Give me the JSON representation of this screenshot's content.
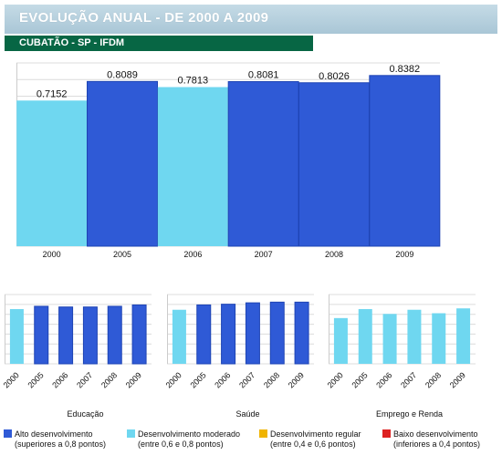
{
  "header": {
    "title": "EVOLUÇÃO ANUAL - DE 2000 A 2009"
  },
  "subheader": {
    "title": "CUBATÃO - SP - IFDM"
  },
  "colors": {
    "high": "#2f5ad6",
    "moderate": "#6fd7f0",
    "regular": "#f0b400",
    "low": "#dd2222"
  },
  "chart_data": [
    {
      "type": "bar",
      "panel": "main",
      "categories": [
        "2000",
        "2005",
        "2006",
        "2007",
        "2008",
        "2009"
      ],
      "values": [
        0.7152,
        0.8089,
        0.7813,
        0.8081,
        0.8026,
        0.8382
      ],
      "value_labels": [
        "0.7152",
        "0.8089",
        "0.7813",
        "0.8081",
        "0.8026",
        "0.8382"
      ],
      "classes": [
        "moderate",
        "high",
        "moderate",
        "high",
        "high",
        "high"
      ],
      "ylim": [
        0,
        0.9
      ],
      "grid": true,
      "title": "",
      "xlabel": "",
      "ylabel": ""
    },
    {
      "type": "bar",
      "panel": "educacao",
      "title": "Educação",
      "categories": [
        "2000",
        "2005",
        "2006",
        "2007",
        "2008",
        "2009"
      ],
      "values": [
        0.79,
        0.83,
        0.82,
        0.82,
        0.83,
        0.85
      ],
      "classes": [
        "moderate",
        "high",
        "high",
        "high",
        "high",
        "high"
      ],
      "ylim": [
        0,
        1
      ],
      "grid": true
    },
    {
      "type": "bar",
      "panel": "saude",
      "title": "Saúde",
      "categories": [
        "2000",
        "2005",
        "2006",
        "2007",
        "2008",
        "2009"
      ],
      "values": [
        0.78,
        0.85,
        0.86,
        0.88,
        0.89,
        0.89
      ],
      "classes": [
        "moderate",
        "high",
        "high",
        "high",
        "high",
        "high"
      ],
      "ylim": [
        0,
        1
      ],
      "grid": true
    },
    {
      "type": "bar",
      "panel": "emprego",
      "title": "Emprego e Renda",
      "categories": [
        "2000",
        "2005",
        "2006",
        "2007",
        "2008",
        "2009"
      ],
      "values": [
        0.66,
        0.79,
        0.72,
        0.78,
        0.73,
        0.8
      ],
      "classes": [
        "moderate",
        "moderate",
        "moderate",
        "moderate",
        "moderate",
        "moderate"
      ],
      "ylim": [
        0,
        1
      ],
      "grid": true
    }
  ],
  "legend": [
    {
      "key": "high",
      "line1": "Alto desenvolvimento",
      "line2": "(superiores a 0,8 pontos)"
    },
    {
      "key": "moderate",
      "line1": "Desenvolvimento moderado",
      "line2": "(entre 0,6 e 0,8 pontos)"
    },
    {
      "key": "regular",
      "line1": "Desenvolvimento regular",
      "line2": "(entre 0,4 e 0,6 pontos)"
    },
    {
      "key": "low",
      "line1": "Baixo desenvolvimento",
      "line2": "(inferiores a 0,4 pontos)"
    }
  ]
}
